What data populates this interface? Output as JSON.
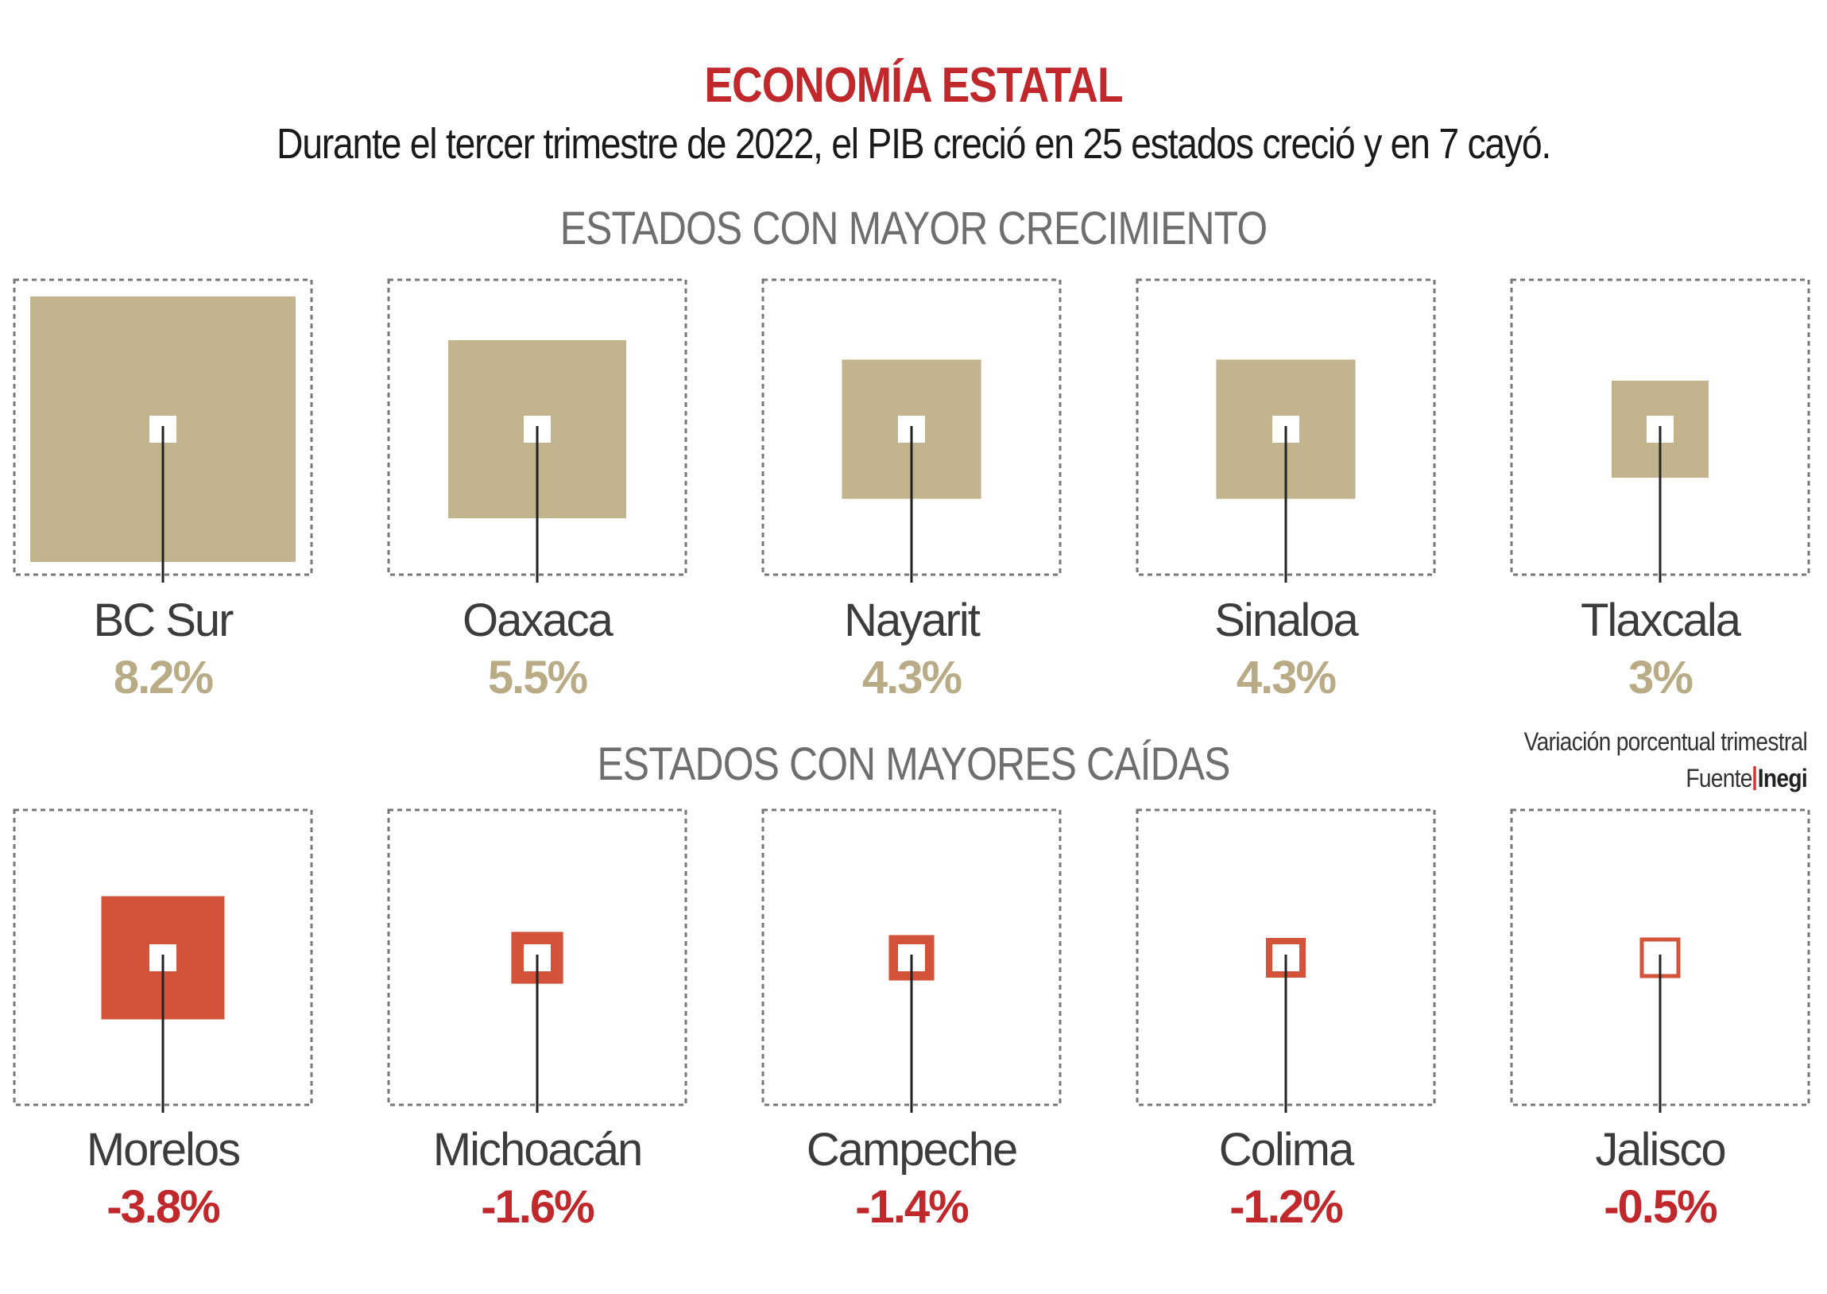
{
  "header": {
    "title": "ECONOMÍA ESTATAL",
    "subtitle": "Durante el tercer trimestre de 2022, el PIB creció en 25 estados creció y en 7 cayó."
  },
  "legend": {
    "note": "Variación porcentual trimestral",
    "source_label": "Fuente",
    "source_name": "Inegi"
  },
  "colors": {
    "growth": "#c2b48c",
    "growth_text": "#b8ab85",
    "decline": "#d2533a",
    "decline_text": "#c0282c",
    "title": "#c0282c"
  },
  "chart_data": [
    {
      "type": "proportional-squares",
      "title": "ESTADOS CON MAYOR CRECIMIENTO",
      "unit": "%",
      "categories": [
        "BC Sur",
        "Oaxaca",
        "Nayarit",
        "Sinaloa",
        "Tlaxcala"
      ],
      "values": [
        8.2,
        5.5,
        4.3,
        4.3,
        3
      ],
      "value_labels": [
        "8.2%",
        "5.5%",
        "4.3%",
        "4.3%",
        "3%"
      ]
    },
    {
      "type": "proportional-squares",
      "title": "ESTADOS CON MAYORES CAÍDAS",
      "unit": "%",
      "categories": [
        "Morelos",
        "Michoacán",
        "Campeche",
        "Colima",
        "Jalisco"
      ],
      "values": [
        -3.8,
        -1.6,
        -1.4,
        -1.2,
        -0.5
      ],
      "value_labels": [
        "-3.8%",
        "-1.6%",
        "-1.4%",
        "-1.2%",
        "-0.5%"
      ]
    }
  ]
}
